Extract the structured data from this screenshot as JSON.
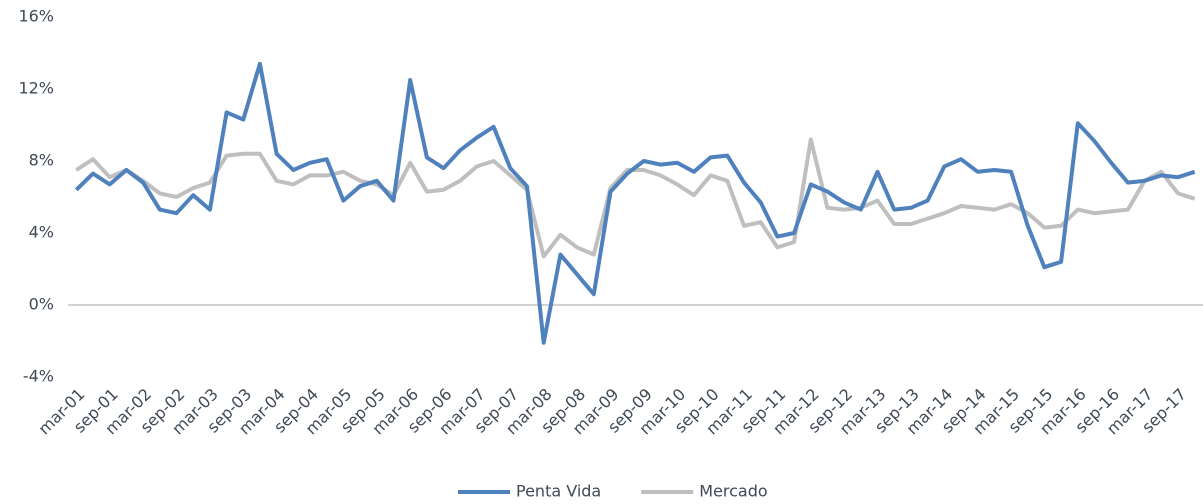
{
  "chart_data": {
    "type": "line",
    "categories": [
      "mar-01",
      null,
      "sep-01",
      null,
      "mar-02",
      null,
      "sep-02",
      null,
      "mar-03",
      null,
      "sep-03",
      null,
      "mar-04",
      null,
      "sep-04",
      null,
      "mar-05",
      null,
      "sep-05",
      null,
      "mar-06",
      null,
      "sep-06",
      null,
      "mar-07",
      null,
      "sep-07",
      null,
      "mar-08",
      null,
      "sep-08",
      null,
      "mar-09",
      null,
      "sep-09",
      null,
      "mar-10",
      null,
      "sep-10",
      null,
      "mar-11",
      null,
      "sep-11",
      null,
      "mar-12",
      null,
      "sep-12",
      null,
      "mar-13",
      null,
      "sep-13",
      null,
      "mar-14",
      null,
      "sep-14",
      null,
      "mar-15",
      null,
      "sep-15",
      null,
      "mar-16",
      null,
      "sep-16",
      null,
      "mar-17",
      null,
      "sep-17",
      null
    ],
    "series": [
      {
        "name": "Penta Vida",
        "color": "#4f81bd",
        "values": [
          6.4,
          7.3,
          6.7,
          7.5,
          6.8,
          5.3,
          5.1,
          6.1,
          5.3,
          10.7,
          10.3,
          13.4,
          8.4,
          7.5,
          7.9,
          8.1,
          5.8,
          6.6,
          6.9,
          5.8,
          12.5,
          8.2,
          7.6,
          8.6,
          9.3,
          9.9,
          7.6,
          6.6,
          -2.1,
          2.8,
          1.7,
          0.6,
          6.3,
          7.3,
          8.0,
          7.8,
          7.9,
          7.4,
          8.2,
          8.3,
          6.8,
          5.7,
          3.8,
          4.0,
          6.7,
          6.3,
          5.7,
          5.3,
          7.4,
          5.3,
          5.4,
          5.8,
          7.7,
          8.1,
          7.4,
          7.5,
          7.4,
          4.4,
          2.1,
          2.4,
          10.1,
          9.1,
          7.9,
          6.8,
          6.9,
          7.2,
          7.1,
          7.4
        ]
      },
      {
        "name": "Mercado",
        "color": "#bfbfbf",
        "values": [
          7.5,
          8.1,
          7.1,
          7.5,
          6.9,
          6.2,
          6.0,
          6.5,
          6.8,
          8.3,
          8.4,
          8.4,
          6.9,
          6.7,
          7.2,
          7.2,
          7.4,
          6.9,
          6.7,
          6.1,
          7.9,
          6.3,
          6.4,
          6.9,
          7.7,
          8.0,
          7.2,
          6.4,
          2.7,
          3.9,
          3.2,
          2.8,
          6.5,
          7.5,
          7.5,
          7.2,
          6.7,
          6.1,
          7.2,
          6.9,
          4.4,
          4.6,
          3.2,
          3.5,
          9.2,
          5.4,
          5.3,
          5.4,
          5.8,
          4.5,
          4.5,
          4.8,
          5.1,
          5.5,
          5.4,
          5.3,
          5.6,
          5.1,
          4.3,
          4.4,
          5.3,
          5.1,
          5.2,
          5.3,
          6.9,
          7.4,
          6.2,
          5.9
        ]
      }
    ],
    "ylim": [
      -4,
      16
    ],
    "yticks": [
      {
        "value": -4,
        "label": "-4%"
      },
      {
        "value": 0,
        "label": "0%"
      },
      {
        "value": 4,
        "label": "4%"
      },
      {
        "value": 8,
        "label": "8%"
      },
      {
        "value": 12,
        "label": "12%"
      },
      {
        "value": 16,
        "label": "16%"
      }
    ],
    "grid": false,
    "legend": "bottom"
  }
}
